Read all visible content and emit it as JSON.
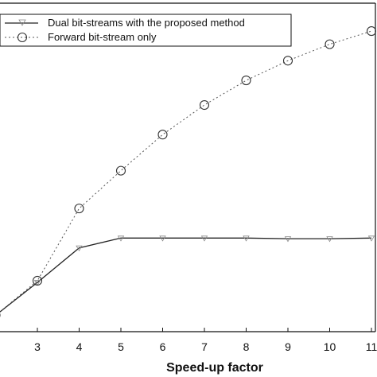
{
  "chart_data": {
    "type": "line",
    "xlabel": "Speed-up factor",
    "ylabel": "",
    "xlim": [
      2,
      11.1
    ],
    "ylim": [
      0,
      1
    ],
    "x_ticks": [
      "3",
      "4",
      "5",
      "6",
      "7",
      "8",
      "9",
      "10",
      "11"
    ],
    "legend_position": "top-left",
    "grid": false,
    "series": [
      {
        "name": "Dual bit-streams with the proposed method",
        "marker": "triangle-down",
        "line_style": "solid",
        "x": [
          2,
          3,
          4,
          5,
          6,
          7,
          8,
          9,
          10,
          11
        ],
        "y": [
          0.05,
          0.15,
          0.255,
          0.285,
          0.285,
          0.285,
          0.285,
          0.283,
          0.283,
          0.285
        ]
      },
      {
        "name": "Forward bit-stream only",
        "marker": "circle",
        "line_style": "dotted",
        "x": [
          2,
          3,
          4,
          5,
          6,
          7,
          8,
          9,
          10,
          11
        ],
        "y": [
          0.05,
          0.155,
          0.375,
          0.49,
          0.6,
          0.69,
          0.765,
          0.825,
          0.875,
          0.915
        ]
      }
    ]
  }
}
